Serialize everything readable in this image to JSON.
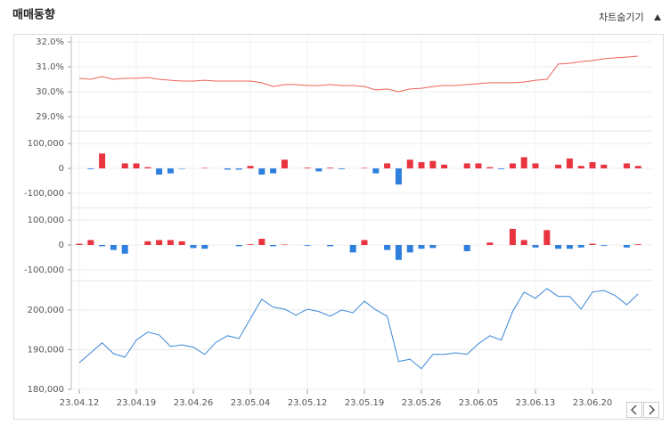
{
  "chart_data": {
    "type": "combo",
    "title": "매매동향",
    "toggle_label": "차트숨기기",
    "categories": [
      "23.04.12",
      null,
      null,
      null,
      null,
      "23.04.19",
      null,
      null,
      null,
      null,
      "23.04.26",
      null,
      null,
      null,
      null,
      "23.05.04",
      null,
      null,
      null,
      null,
      "23.05.12",
      null,
      null,
      null,
      null,
      "23.05.19",
      null,
      null,
      null,
      null,
      "23.05.26",
      null,
      null,
      null,
      null,
      "23.06.05",
      null,
      null,
      null,
      null,
      "23.06.13",
      null,
      null,
      null,
      null,
      "23.06.20",
      null,
      null,
      null,
      null
    ],
    "grid": true,
    "panels": [
      {
        "type": "line",
        "color": "#f0605a",
        "ylim": [
          28.5,
          32.25
        ],
        "yticks": [
          {
            "value": 29,
            "label": "29.0%"
          },
          {
            "value": 30,
            "label": "30.0%"
          },
          {
            "value": 31,
            "label": "31.0%"
          },
          {
            "value": 32,
            "label": "32.0%"
          }
        ],
        "values": [
          30.54,
          30.5,
          30.61,
          30.5,
          30.54,
          30.54,
          30.57,
          30.5,
          30.46,
          30.43,
          30.43,
          30.46,
          30.43,
          30.43,
          30.43,
          30.43,
          30.36,
          30.21,
          30.29,
          30.29,
          30.25,
          30.25,
          30.29,
          30.25,
          30.25,
          30.21,
          30.07,
          30.11,
          30.0,
          30.11,
          30.14,
          30.21,
          30.25,
          30.25,
          30.29,
          30.32,
          30.36,
          30.36,
          30.36,
          30.39,
          30.46,
          30.5,
          31.11,
          31.14,
          31.21,
          31.25,
          31.32,
          31.36,
          31.39,
          31.43
        ]
      },
      {
        "type": "bar",
        "color": "#e8343f",
        "negative_color": "#2f7fde",
        "ylim": [
          -140000,
          140000
        ],
        "yticks": [
          {
            "value": -100000,
            "label": "-100,000"
          },
          0,
          {
            "value": 100000,
            "label": "100,000"
          }
        ],
        "values": [
          0,
          -3000,
          60000,
          0,
          20000,
          20000,
          5000,
          -25000,
          -20000,
          -2000,
          0,
          2000,
          0,
          -5000,
          -5000,
          10000,
          -25000,
          -20000,
          35000,
          0,
          3000,
          -12000,
          3000,
          -3000,
          0,
          2000,
          -20000,
          20000,
          -65000,
          35000,
          25000,
          30000,
          15000,
          0,
          20000,
          20000,
          5000,
          -3000,
          20000,
          45000,
          20000,
          0,
          15000,
          40000,
          10000,
          25000,
          15000,
          0,
          20000,
          10000
        ]
      },
      {
        "type": "bar",
        "color": "#e8343f",
        "negative_color": "#2f7fde",
        "ylim": [
          -140000,
          140000
        ],
        "yticks": [
          {
            "value": -100000,
            "label": "-100,000"
          },
          0,
          {
            "value": 100000,
            "label": "100,000"
          }
        ],
        "values": [
          5000,
          20000,
          -5000,
          -20000,
          -35000,
          0,
          15000,
          20000,
          20000,
          15000,
          -12000,
          -15000,
          0,
          0,
          -5000,
          3000,
          25000,
          -5000,
          2000,
          0,
          -3000,
          0,
          -5000,
          0,
          -30000,
          20000,
          0,
          -20000,
          -60000,
          -30000,
          -15000,
          -12000,
          0,
          0,
          -25000,
          0,
          10000,
          0,
          65000,
          20000,
          -10000,
          60000,
          -15000,
          -15000,
          -10000,
          5000,
          -3000,
          0,
          -10000,
          3000
        ]
      },
      {
        "type": "line",
        "color": "#3a86d9",
        "ylim": [
          180000,
          206700
        ],
        "yticks": [
          {
            "value": 180000,
            "label": "180,000"
          },
          {
            "value": 190000,
            "label": "190,000"
          },
          {
            "value": 200000,
            "label": "200,000"
          }
        ],
        "values": [
          186700,
          189200,
          191700,
          189000,
          188100,
          192400,
          194400,
          193700,
          190800,
          191200,
          190600,
          188800,
          191900,
          193500,
          192800,
          197800,
          202700,
          200700,
          200200,
          198700,
          200200,
          199600,
          198400,
          200000,
          199300,
          202200,
          200000,
          198400,
          187000,
          187600,
          185200,
          188800,
          188800,
          189200,
          188800,
          191500,
          193500,
          192400,
          199600,
          204500,
          202900,
          205400,
          203400,
          203400,
          200200,
          204500,
          204900,
          203600,
          201300,
          204000
        ]
      }
    ]
  }
}
